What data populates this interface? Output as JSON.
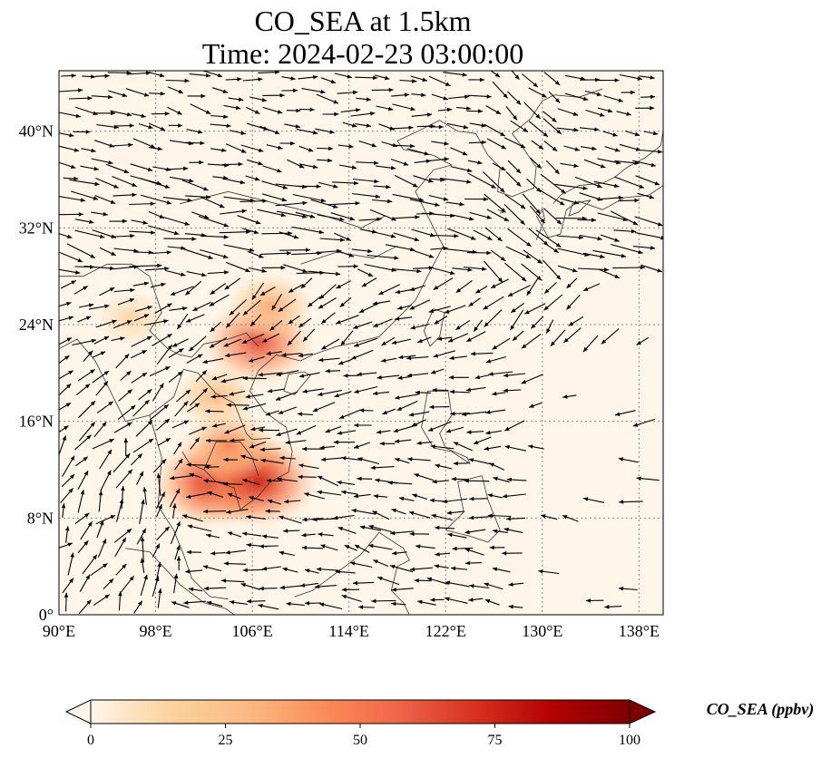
{
  "title_line1": "CO_SEA at 1.5km",
  "title_line2": "Time: 2024-02-23 03:00:00",
  "map": {
    "lon_range": [
      90,
      140
    ],
    "lat_range": [
      0,
      45
    ],
    "lon_ticks": [
      {
        "value": 90,
        "label": "90°E"
      },
      {
        "value": 98,
        "label": "98°E"
      },
      {
        "value": 106,
        "label": "106°E"
      },
      {
        "value": 114,
        "label": "114°E"
      },
      {
        "value": 122,
        "label": "122°E"
      },
      {
        "value": 130,
        "label": "130°E"
      },
      {
        "value": 138,
        "label": "138°E"
      }
    ],
    "lat_ticks": [
      {
        "value": 0,
        "label": "0°"
      },
      {
        "value": 8,
        "label": "8°N"
      },
      {
        "value": 16,
        "label": "16°N"
      },
      {
        "value": 24,
        "label": "24°N"
      },
      {
        "value": 32,
        "label": "32°N"
      },
      {
        "value": 40,
        "label": "40°N"
      }
    ],
    "gridlines": true,
    "background_color": "#fff5e8",
    "plumes": [
      {
        "lon": 104.5,
        "lat": 11.5,
        "value": 80
      },
      {
        "lon": 102.5,
        "lat": 10.8,
        "value": 70
      },
      {
        "lon": 106.5,
        "lat": 11.0,
        "value": 75
      },
      {
        "lon": 104.0,
        "lat": 14.0,
        "value": 45
      },
      {
        "lon": 103.0,
        "lat": 18.0,
        "value": 30
      },
      {
        "lon": 106.5,
        "lat": 22.5,
        "value": 65
      },
      {
        "lon": 107.5,
        "lat": 25.5,
        "value": 35
      },
      {
        "lon": 96.0,
        "lat": 24.5,
        "value": 15
      }
    ]
  },
  "colorbar": {
    "min": 0,
    "max": 100,
    "ticks": [
      {
        "value": 0,
        "label": "0"
      },
      {
        "value": 25,
        "label": "25"
      },
      {
        "value": 50,
        "label": "50"
      },
      {
        "value": 75,
        "label": "75"
      },
      {
        "value": 100,
        "label": "100"
      }
    ],
    "label": "CO_SEA (ppbv)",
    "colors": [
      "#fff5eb",
      "#fdd49e",
      "#fdbb84",
      "#fc8d59",
      "#ef6548",
      "#d7301f",
      "#b30000",
      "#7f0000"
    ]
  }
}
